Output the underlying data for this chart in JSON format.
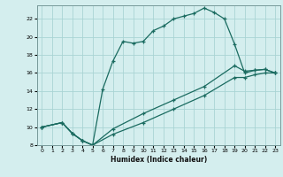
{
  "xlabel": "Humidex (Indice chaleur)",
  "bg_color": "#d4eeee",
  "grid_color": "#aad4d4",
  "line_color": "#1a6b60",
  "xlim": [
    -0.5,
    23.5
  ],
  "ylim": [
    8,
    23.5
  ],
  "xticks": [
    0,
    1,
    2,
    3,
    4,
    5,
    6,
    7,
    8,
    9,
    10,
    11,
    12,
    13,
    14,
    15,
    16,
    17,
    18,
    19,
    20,
    21,
    22,
    23
  ],
  "yticks": [
    8,
    10,
    12,
    14,
    16,
    18,
    20,
    22
  ],
  "line1_x": [
    0,
    2,
    3,
    4,
    5,
    6,
    7,
    8,
    9,
    10,
    11,
    12,
    13,
    14,
    15,
    16,
    17,
    18,
    19,
    20,
    21,
    22,
    23
  ],
  "line1_y": [
    10,
    10.5,
    9.3,
    8.5,
    8.0,
    14.2,
    17.3,
    19.5,
    19.3,
    19.5,
    20.7,
    21.2,
    22.0,
    22.3,
    22.6,
    23.2,
    22.7,
    22.0,
    19.2,
    16.0,
    16.3,
    16.4,
    16.0
  ],
  "line2_x": [
    0,
    2,
    3,
    4,
    5,
    7,
    10,
    13,
    16,
    19,
    20,
    21,
    22,
    23
  ],
  "line2_y": [
    10,
    10.5,
    9.3,
    8.5,
    8.0,
    9.8,
    11.5,
    13.0,
    14.5,
    16.8,
    16.2,
    16.3,
    16.4,
    16.0
  ],
  "line3_x": [
    0,
    2,
    3,
    4,
    5,
    7,
    10,
    13,
    16,
    19,
    20,
    21,
    22,
    23
  ],
  "line3_y": [
    10,
    10.5,
    9.3,
    8.5,
    8.0,
    9.2,
    10.5,
    12.0,
    13.5,
    15.5,
    15.5,
    15.8,
    16.0,
    16.0
  ]
}
